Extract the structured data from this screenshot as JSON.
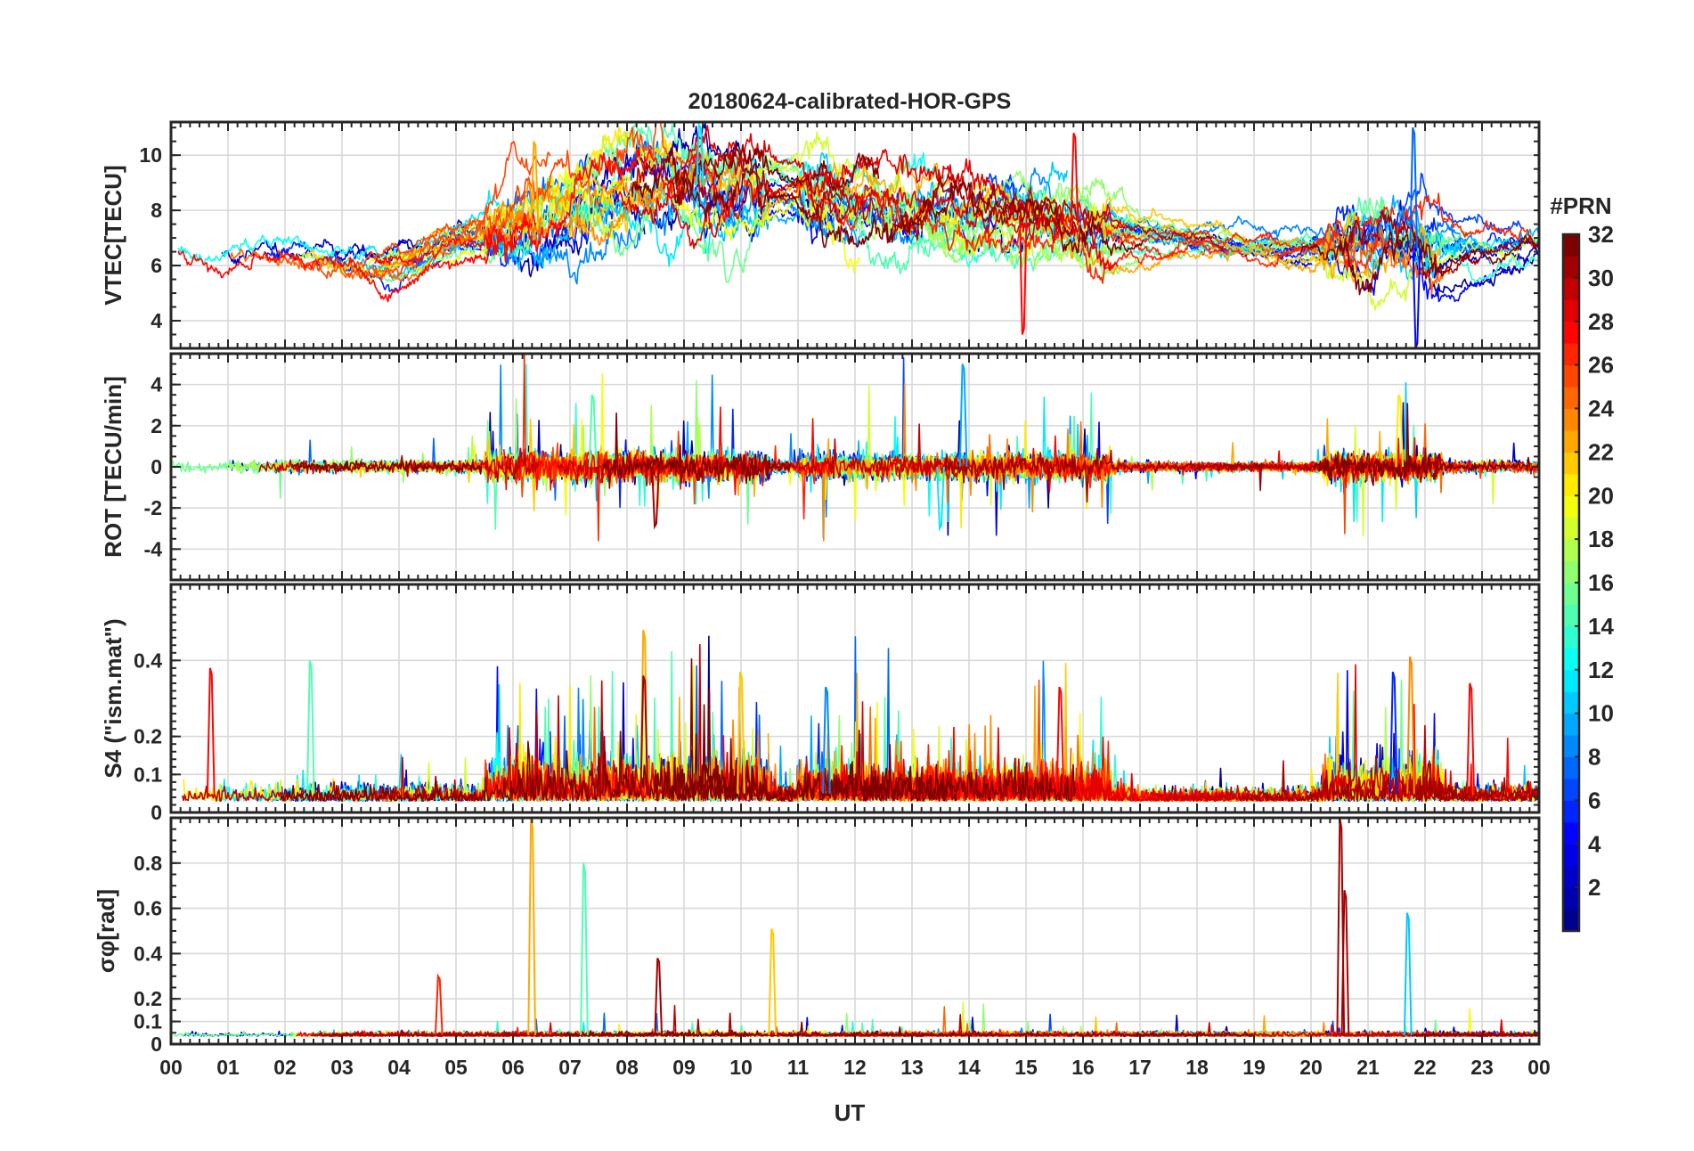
{
  "chart_data": {
    "type": "line",
    "title": "20180624-calibrated-HOR-GPS",
    "xlabel": "UT",
    "x_ticks": [
      "00",
      "01",
      "02",
      "03",
      "04",
      "05",
      "06",
      "07",
      "08",
      "09",
      "10",
      "11",
      "12",
      "13",
      "14",
      "15",
      "16",
      "17",
      "18",
      "19",
      "20",
      "21",
      "22",
      "23",
      "00"
    ],
    "xlim": [
      0,
      24
    ],
    "colorbar": {
      "label": "#PRN",
      "range": [
        1,
        32
      ],
      "ticks": [
        "2",
        "4",
        "6",
        "8",
        "10",
        "12",
        "14",
        "16",
        "18",
        "20",
        "22",
        "24",
        "26",
        "28",
        "30",
        "32"
      ],
      "colormap": [
        "#00008f",
        "#0000ff",
        "#0080ff",
        "#00ffff",
        "#80ff80",
        "#ffff00",
        "#ff8000",
        "#ff0000",
        "#800000"
      ]
    },
    "panels": [
      {
        "name": "vtec",
        "ylabel": "VTEC[TECU]",
        "ylim": [
          3,
          11.2
        ],
        "y_ticks": [
          "4",
          "6",
          "8",
          "10"
        ],
        "description": "Multi-satellite VTEC traces, baseline ~6 TECU early, rising to ~8-10 TECU around 07-10 UT, decaying to ~6-7 TECU later",
        "envelope": [
          [
            0,
            6.6
          ],
          [
            2,
            6.4
          ],
          [
            4,
            6.0
          ],
          [
            5,
            6.9
          ],
          [
            6,
            7.3
          ],
          [
            7,
            7.9
          ],
          [
            8,
            8.8
          ],
          [
            9,
            9.0
          ],
          [
            10,
            8.7
          ],
          [
            11,
            8.6
          ],
          [
            12,
            8.2
          ],
          [
            13,
            8.0
          ],
          [
            14,
            7.9
          ],
          [
            15,
            7.8
          ],
          [
            16,
            7.4
          ],
          [
            17,
            7.0
          ],
          [
            18,
            6.9
          ],
          [
            19,
            6.7
          ],
          [
            20,
            6.5
          ],
          [
            21,
            6.7
          ],
          [
            22,
            6.6
          ],
          [
            23,
            6.5
          ],
          [
            24,
            6.6
          ]
        ]
      },
      {
        "name": "rot",
        "ylabel": "ROT [TECU/min]",
        "ylim": [
          -5.5,
          5.5
        ],
        "y_ticks": [
          "-4",
          "-2",
          "0",
          "2",
          "4"
        ],
        "description": "Rate of TEC fluctuating around 0, spikes up to ~5 near 13.9 UT, to ~3.5 near 21.5 UT"
      },
      {
        "name": "s4",
        "ylabel": "S4 (\"ism.mat\")",
        "ylim": [
          0,
          0.6
        ],
        "y_ticks": [
          "0",
          "0.1",
          "0.2",
          "0.4"
        ],
        "description": "Amplitude scintillation index, typically 0.02-0.15 with peaks to ~0.48 near 08.2 UT and ~0.41 near 21.8 UT"
      },
      {
        "name": "sigma_phi",
        "ylabel": "σφ[rad]",
        "ylim": [
          0,
          1.0
        ],
        "y_ticks": [
          "0",
          "0.1",
          "0.2",
          "0.4",
          "0.6",
          "0.8"
        ],
        "description": "Phase scintillation, baseline ~0.04 rad, spikes ~1.0 at 06.3 UT, ~0.8 at 07.2 UT, ~0.5 at 10.5 UT, ~1.0 at 20.5 UT"
      }
    ],
    "highlight_spikes": {
      "vtec": [
        {
          "x": 6.38,
          "y": 10.5,
          "prn": 23
        },
        {
          "x": 9.28,
          "y": 11.1,
          "prn": 12
        },
        {
          "x": 15.85,
          "y": 10.8,
          "prn": 28
        },
        {
          "x": 21.8,
          "y": 11.0,
          "prn": 8
        },
        {
          "x": 14.95,
          "y": 3.5,
          "prn": 28
        },
        {
          "x": 21.85,
          "y": 3.0,
          "prn": 5
        }
      ],
      "rot": [
        {
          "x": 13.9,
          "y": 5.0,
          "prn": 10
        },
        {
          "x": 21.55,
          "y": 3.5,
          "prn": 21
        },
        {
          "x": 7.4,
          "y": 3.5,
          "prn": 15
        },
        {
          "x": 13.5,
          "y": -3.0,
          "prn": 12
        },
        {
          "x": 8.5,
          "y": -2.9,
          "prn": 31
        }
      ],
      "s4": [
        {
          "x": 8.3,
          "y": 0.48,
          "prn": 23
        },
        {
          "x": 21.75,
          "y": 0.41,
          "prn": 24
        },
        {
          "x": 0.7,
          "y": 0.38,
          "prn": 28
        },
        {
          "x": 2.45,
          "y": 0.4,
          "prn": 15
        },
        {
          "x": 10.0,
          "y": 0.37,
          "prn": 22
        },
        {
          "x": 8.3,
          "y": 0.36,
          "prn": 31
        },
        {
          "x": 15.6,
          "y": 0.33,
          "prn": 28
        },
        {
          "x": 22.8,
          "y": 0.34,
          "prn": 28
        },
        {
          "x": 11.5,
          "y": 0.33,
          "prn": 9
        },
        {
          "x": 21.45,
          "y": 0.37,
          "prn": 6
        }
      ],
      "sigma_phi": [
        {
          "x": 6.33,
          "y": 1.0,
          "prn": 23
        },
        {
          "x": 7.25,
          "y": 0.8,
          "prn": 15
        },
        {
          "x": 10.55,
          "y": 0.51,
          "prn": 22
        },
        {
          "x": 20.52,
          "y": 1.0,
          "prn": 31
        },
        {
          "x": 20.6,
          "y": 0.68,
          "prn": 31
        },
        {
          "x": 21.7,
          "y": 0.58,
          "prn": 11
        },
        {
          "x": 4.7,
          "y": 0.3,
          "prn": 27
        },
        {
          "x": 8.55,
          "y": 0.38,
          "prn": 31
        }
      ]
    }
  }
}
